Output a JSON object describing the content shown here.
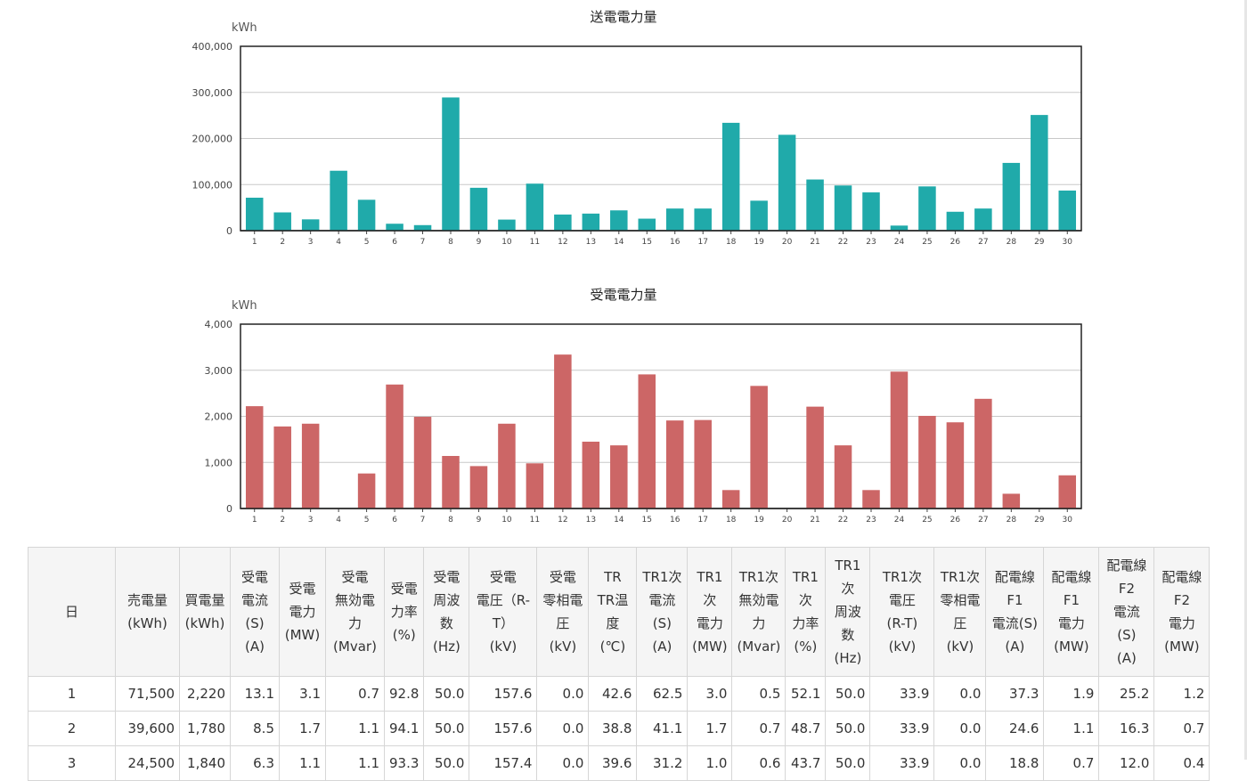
{
  "chart_data": [
    {
      "type": "bar",
      "title": "送電電力量",
      "ylabel": "kWh",
      "ylim": [
        0,
        400000
      ],
      "yticks": [
        "0",
        "100,000",
        "200,000",
        "300,000",
        "400,000"
      ],
      "categories": [
        "1",
        "2",
        "3",
        "4",
        "5",
        "6",
        "7",
        "8",
        "9",
        "10",
        "11",
        "12",
        "13",
        "14",
        "15",
        "16",
        "17",
        "18",
        "19",
        "20",
        "21",
        "22",
        "23",
        "24",
        "25",
        "26",
        "27",
        "28",
        "29",
        "30"
      ],
      "values": [
        71500,
        39600,
        24500,
        130000,
        67000,
        15000,
        12000,
        289000,
        93000,
        24000,
        102000,
        35000,
        37000,
        44000,
        26000,
        48000,
        48000,
        234000,
        65000,
        208000,
        111000,
        98000,
        83000,
        11000,
        96000,
        41000,
        48000,
        147000,
        251000,
        87000
      ],
      "color": "#20aaaa",
      "grid": true
    },
    {
      "type": "bar",
      "title": "受電電力量",
      "ylabel": "kWh",
      "ylim": [
        0,
        4000
      ],
      "yticks": [
        "0",
        "1,000",
        "2,000",
        "3,000",
        "4,000"
      ],
      "categories": [
        "1",
        "2",
        "3",
        "4",
        "5",
        "6",
        "7",
        "8",
        "9",
        "10",
        "11",
        "12",
        "13",
        "14",
        "15",
        "16",
        "17",
        "18",
        "19",
        "20",
        "21",
        "22",
        "23",
        "24",
        "25",
        "26",
        "27",
        "28",
        "29",
        "30"
      ],
      "values": [
        2220,
        1780,
        1840,
        0,
        760,
        2690,
        1990,
        1140,
        920,
        1840,
        980,
        3340,
        1450,
        1370,
        2910,
        1910,
        1920,
        400,
        2660,
        0,
        2210,
        1370,
        400,
        2970,
        2010,
        1870,
        2380,
        320,
        0,
        720
      ],
      "color": "#cc6666",
      "grid": true
    }
  ],
  "table": {
    "headers": [
      "日",
      "売電量\n(kWh)",
      "買電量\n(kWh)",
      "受電\n電流\n(S)\n(A)",
      "受電\n電力\n(MW)",
      "受電\n無効電\n力\n(Mvar)",
      "受電\n力率\n(%)",
      "受電\n周波\n数\n(Hz)",
      "受電\n電圧（R-\nT）\n(kV)",
      "受電\n零相電\n圧\n(kV)",
      "TR\nTR温\n度\n(℃)",
      "TR1次\n電流\n(S)\n(A)",
      "TR1\n次\n電力\n(MW)",
      "TR1次\n無効電\n力\n(Mvar)",
      "TR1\n次\n力率\n(%)",
      "TR1\n次\n周波\n数\n(Hz)",
      "TR1次\n電圧\n(R-T)\n(kV)",
      "TR1次\n零相電\n圧\n(kV)",
      "配電線\nF1\n電流(S)\n(A)",
      "配電線\nF1\n電力\n(MW)",
      "配電線\nF2\n電流\n(S)\n(A)",
      "配電線\nF2\n電力\n(MW)"
    ],
    "rows": [
      [
        "1",
        "71,500",
        "2,220",
        "13.1",
        "3.1",
        "0.7",
        "92.8",
        "50.0",
        "157.6",
        "0.0",
        "42.6",
        "62.5",
        "3.0",
        "0.5",
        "52.1",
        "50.0",
        "33.9",
        "0.0",
        "37.3",
        "1.9",
        "25.2",
        "1.2"
      ],
      [
        "2",
        "39,600",
        "1,780",
        "8.5",
        "1.7",
        "1.1",
        "94.1",
        "50.0",
        "157.6",
        "0.0",
        "38.8",
        "41.1",
        "1.7",
        "0.7",
        "48.7",
        "50.0",
        "33.9",
        "0.0",
        "24.6",
        "1.1",
        "16.3",
        "0.7"
      ],
      [
        "3",
        "24,500",
        "1,840",
        "6.3",
        "1.1",
        "1.1",
        "93.3",
        "50.0",
        "157.4",
        "0.0",
        "39.6",
        "31.2",
        "1.0",
        "0.6",
        "43.7",
        "50.0",
        "33.9",
        "0.0",
        "18.8",
        "0.7",
        "12.0",
        "0.4"
      ]
    ]
  }
}
